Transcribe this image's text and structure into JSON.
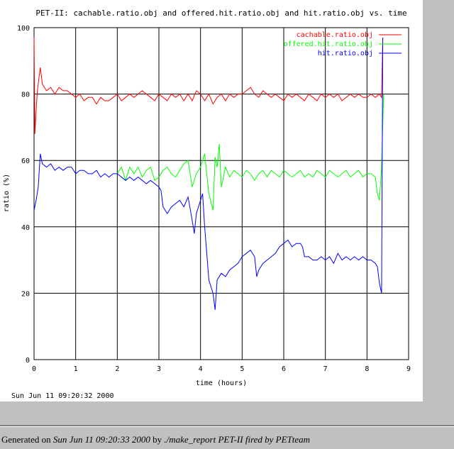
{
  "footer": {
    "prefix": "Generated on ",
    "date": "Sun Jun 11 09:20:33 2000",
    "by_label": " by ",
    "script": "./make_report PET-II",
    "fired_by": " fired by PETteam"
  },
  "chart_data": {
    "type": "line",
    "title": "PET-II: cachable.ratio.obj and offered.hit.ratio.obj and hit.ratio.obj vs. time",
    "xlabel": "time (hours)",
    "ylabel": "ratio (%)",
    "xlim": [
      0,
      9
    ],
    "ylim": [
      0,
      100
    ],
    "xticks": [
      0,
      1,
      2,
      3,
      4,
      5,
      6,
      7,
      8,
      9
    ],
    "yticks": [
      0,
      20,
      40,
      60,
      80,
      100
    ],
    "grid": true,
    "legend_position": "top-right",
    "timestamp": "Sun Jun 11 09:20:32 2000",
    "series": [
      {
        "name": "cachable.ratio.obj",
        "color": "#ff0000",
        "points": [
          [
            0.0,
            97
          ],
          [
            0.02,
            68
          ],
          [
            0.05,
            75
          ],
          [
            0.08,
            81
          ],
          [
            0.12,
            85
          ],
          [
            0.15,
            88
          ],
          [
            0.2,
            83
          ],
          [
            0.3,
            81
          ],
          [
            0.4,
            82
          ],
          [
            0.5,
            80
          ],
          [
            0.6,
            82
          ],
          [
            0.7,
            81
          ],
          [
            0.8,
            81
          ],
          [
            0.9,
            80
          ],
          [
            1.0,
            79
          ],
          [
            1.1,
            80
          ],
          [
            1.2,
            78
          ],
          [
            1.3,
            79
          ],
          [
            1.4,
            79
          ],
          [
            1.5,
            77
          ],
          [
            1.6,
            79
          ],
          [
            1.7,
            78
          ],
          [
            1.8,
            78
          ],
          [
            1.9,
            79
          ],
          [
            2.0,
            80
          ],
          [
            2.1,
            78
          ],
          [
            2.2,
            79
          ],
          [
            2.3,
            80
          ],
          [
            2.4,
            79
          ],
          [
            2.5,
            80
          ],
          [
            2.6,
            81
          ],
          [
            2.7,
            80
          ],
          [
            2.8,
            79
          ],
          [
            2.9,
            78
          ],
          [
            3.0,
            80
          ],
          [
            3.1,
            79
          ],
          [
            3.2,
            78
          ],
          [
            3.3,
            80
          ],
          [
            3.4,
            79
          ],
          [
            3.5,
            80
          ],
          [
            3.6,
            78
          ],
          [
            3.7,
            80
          ],
          [
            3.8,
            78
          ],
          [
            3.9,
            81
          ],
          [
            4.0,
            80
          ],
          [
            4.1,
            78
          ],
          [
            4.2,
            80
          ],
          [
            4.3,
            77
          ],
          [
            4.4,
            79
          ],
          [
            4.5,
            80
          ],
          [
            4.6,
            78
          ],
          [
            4.7,
            80
          ],
          [
            4.8,
            79
          ],
          [
            4.9,
            80
          ],
          [
            5.0,
            80
          ],
          [
            5.1,
            81
          ],
          [
            5.2,
            82
          ],
          [
            5.3,
            80
          ],
          [
            5.4,
            79
          ],
          [
            5.5,
            81
          ],
          [
            5.6,
            80
          ],
          [
            5.7,
            79
          ],
          [
            5.8,
            80
          ],
          [
            5.9,
            79
          ],
          [
            6.0,
            78
          ],
          [
            6.1,
            80
          ],
          [
            6.2,
            79
          ],
          [
            6.3,
            80
          ],
          [
            6.4,
            79
          ],
          [
            6.5,
            78
          ],
          [
            6.6,
            80
          ],
          [
            6.7,
            79
          ],
          [
            6.8,
            78
          ],
          [
            6.9,
            80
          ],
          [
            7.0,
            79
          ],
          [
            7.1,
            80
          ],
          [
            7.2,
            79
          ],
          [
            7.3,
            80
          ],
          [
            7.4,
            78
          ],
          [
            7.5,
            79
          ],
          [
            7.6,
            80
          ],
          [
            7.7,
            79
          ],
          [
            7.8,
            80
          ],
          [
            7.9,
            79
          ],
          [
            8.0,
            79
          ],
          [
            8.1,
            80
          ],
          [
            8.2,
            79
          ],
          [
            8.3,
            80
          ],
          [
            8.35,
            79
          ],
          [
            8.38,
            97
          ]
        ]
      },
      {
        "name": "offered.hit.ratio.obj",
        "color": "#00ff00",
        "points": [
          [
            2.0,
            56
          ],
          [
            2.1,
            58
          ],
          [
            2.2,
            54
          ],
          [
            2.3,
            58
          ],
          [
            2.4,
            56
          ],
          [
            2.5,
            58
          ],
          [
            2.6,
            55
          ],
          [
            2.7,
            57
          ],
          [
            2.8,
            58
          ],
          [
            2.9,
            54
          ],
          [
            3.0,
            55
          ],
          [
            3.1,
            57
          ],
          [
            3.2,
            58
          ],
          [
            3.3,
            56
          ],
          [
            3.4,
            55
          ],
          [
            3.5,
            57
          ],
          [
            3.6,
            59
          ],
          [
            3.7,
            60
          ],
          [
            3.8,
            52
          ],
          [
            3.9,
            56
          ],
          [
            4.0,
            58
          ],
          [
            4.1,
            62
          ],
          [
            4.2,
            50
          ],
          [
            4.3,
            45
          ],
          [
            4.35,
            61
          ],
          [
            4.4,
            58
          ],
          [
            4.45,
            65
          ],
          [
            4.5,
            52
          ],
          [
            4.6,
            58
          ],
          [
            4.7,
            55
          ],
          [
            4.8,
            57
          ],
          [
            4.9,
            56
          ],
          [
            5.0,
            55
          ],
          [
            5.1,
            57
          ],
          [
            5.2,
            56
          ],
          [
            5.3,
            54
          ],
          [
            5.4,
            56
          ],
          [
            5.5,
            57
          ],
          [
            5.6,
            55
          ],
          [
            5.7,
            57
          ],
          [
            5.8,
            56
          ],
          [
            5.9,
            55
          ],
          [
            6.0,
            57
          ],
          [
            6.1,
            56
          ],
          [
            6.2,
            55
          ],
          [
            6.3,
            56
          ],
          [
            6.4,
            57
          ],
          [
            6.5,
            55
          ],
          [
            6.6,
            56
          ],
          [
            6.7,
            55
          ],
          [
            6.8,
            57
          ],
          [
            6.9,
            56
          ],
          [
            7.0,
            55
          ],
          [
            7.1,
            57
          ],
          [
            7.2,
            56
          ],
          [
            7.3,
            55
          ],
          [
            7.4,
            56
          ],
          [
            7.5,
            57
          ],
          [
            7.6,
            55
          ],
          [
            7.7,
            56
          ],
          [
            7.8,
            57
          ],
          [
            7.9,
            55
          ],
          [
            8.0,
            56
          ],
          [
            8.1,
            56
          ],
          [
            8.2,
            55
          ],
          [
            8.25,
            50
          ],
          [
            8.3,
            48
          ],
          [
            8.35,
            58
          ],
          [
            8.4,
            80
          ]
        ]
      },
      {
        "name": "hit.ratio.obj",
        "color": "#0000ff",
        "points": [
          [
            0.0,
            45
          ],
          [
            0.05,
            48
          ],
          [
            0.1,
            52
          ],
          [
            0.15,
            62
          ],
          [
            0.2,
            59
          ],
          [
            0.3,
            58
          ],
          [
            0.4,
            59
          ],
          [
            0.5,
            57
          ],
          [
            0.6,
            58
          ],
          [
            0.7,
            57
          ],
          [
            0.8,
            58
          ],
          [
            0.9,
            58
          ],
          [
            1.0,
            56
          ],
          [
            1.1,
            57
          ],
          [
            1.2,
            57
          ],
          [
            1.3,
            56
          ],
          [
            1.4,
            56
          ],
          [
            1.5,
            57
          ],
          [
            1.6,
            55
          ],
          [
            1.7,
            56
          ],
          [
            1.8,
            55
          ],
          [
            1.9,
            56
          ],
          [
            2.0,
            56
          ],
          [
            2.1,
            55
          ],
          [
            2.2,
            54
          ],
          [
            2.3,
            55
          ],
          [
            2.4,
            54
          ],
          [
            2.5,
            55
          ],
          [
            2.6,
            54
          ],
          [
            2.7,
            53
          ],
          [
            2.8,
            54
          ],
          [
            2.9,
            53
          ],
          [
            3.0,
            52
          ],
          [
            3.05,
            51
          ],
          [
            3.1,
            46
          ],
          [
            3.2,
            44
          ],
          [
            3.3,
            46
          ],
          [
            3.4,
            47
          ],
          [
            3.5,
            48
          ],
          [
            3.6,
            46
          ],
          [
            3.7,
            49
          ],
          [
            3.8,
            42
          ],
          [
            3.85,
            38
          ],
          [
            3.9,
            44
          ],
          [
            4.0,
            48
          ],
          [
            4.05,
            50
          ],
          [
            4.1,
            40
          ],
          [
            4.15,
            32
          ],
          [
            4.2,
            24
          ],
          [
            4.25,
            22
          ],
          [
            4.3,
            20
          ],
          [
            4.35,
            15
          ],
          [
            4.4,
            24
          ],
          [
            4.5,
            26
          ],
          [
            4.6,
            25
          ],
          [
            4.7,
            27
          ],
          [
            4.8,
            28
          ],
          [
            4.9,
            29
          ],
          [
            5.0,
            31
          ],
          [
            5.1,
            32
          ],
          [
            5.2,
            33
          ],
          [
            5.3,
            31
          ],
          [
            5.35,
            25
          ],
          [
            5.4,
            27
          ],
          [
            5.5,
            29
          ],
          [
            5.6,
            30
          ],
          [
            5.7,
            31
          ],
          [
            5.8,
            32
          ],
          [
            5.9,
            34
          ],
          [
            6.0,
            35
          ],
          [
            6.1,
            36
          ],
          [
            6.2,
            34
          ],
          [
            6.3,
            35
          ],
          [
            6.4,
            35
          ],
          [
            6.45,
            34
          ],
          [
            6.5,
            31
          ],
          [
            6.6,
            31
          ],
          [
            6.7,
            30
          ],
          [
            6.8,
            30
          ],
          [
            6.9,
            31
          ],
          [
            7.0,
            30
          ],
          [
            7.1,
            31
          ],
          [
            7.2,
            29
          ],
          [
            7.3,
            32
          ],
          [
            7.4,
            30
          ],
          [
            7.5,
            31
          ],
          [
            7.6,
            30
          ],
          [
            7.7,
            31
          ],
          [
            7.8,
            30
          ],
          [
            7.9,
            31
          ],
          [
            8.0,
            30
          ],
          [
            8.1,
            30
          ],
          [
            8.2,
            29
          ],
          [
            8.25,
            28
          ],
          [
            8.3,
            23
          ],
          [
            8.35,
            20
          ],
          [
            8.38,
            97
          ]
        ]
      }
    ]
  }
}
